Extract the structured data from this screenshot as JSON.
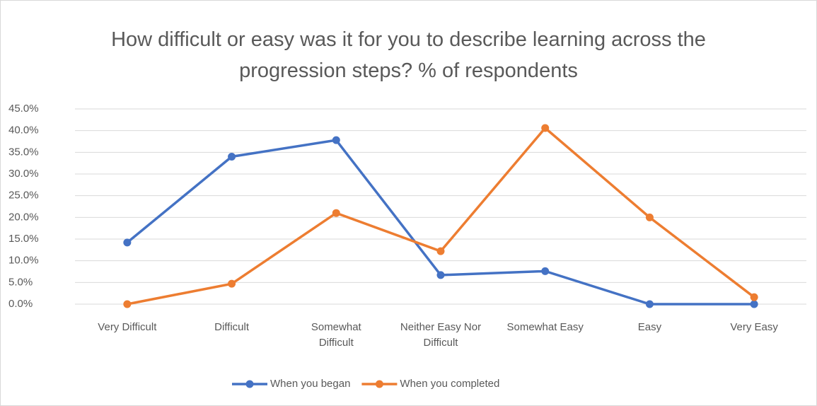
{
  "chart_data": {
    "type": "line",
    "title": "How difficult or easy was it for you to describe learning across the progression steps? % of respondents",
    "categories": [
      "Very Difficult",
      "Difficult",
      "Somewhat Difficult",
      "Neither Easy Nor Difficult",
      "Somewhat Easy",
      "Easy",
      "Very Easy"
    ],
    "series": [
      {
        "name": "When you began",
        "color": "#4472c4",
        "values": [
          14.2,
          34,
          37.8,
          6.7,
          7.6,
          0,
          0
        ]
      },
      {
        "name": "When you completed",
        "color": "#ed7d31",
        "values": [
          0,
          4.7,
          21,
          12.2,
          40.6,
          20,
          1.6
        ]
      }
    ],
    "ylim": [
      0,
      45
    ],
    "yticks": [
      {
        "value": 0,
        "label": "0.0%"
      },
      {
        "value": 5,
        "label": "5.0%"
      },
      {
        "value": 10,
        "label": "10.0%"
      },
      {
        "value": 15,
        "label": "15.0%"
      },
      {
        "value": 20,
        "label": "20.0%"
      },
      {
        "value": 25,
        "label": "25.0%"
      },
      {
        "value": 30,
        "label": "30.0%"
      },
      {
        "value": 35,
        "label": "35.0%"
      },
      {
        "value": 40,
        "label": "40.0%"
      },
      {
        "value": 45,
        "label": "45.0%"
      }
    ],
    "grid": true,
    "legend": "bottom"
  }
}
